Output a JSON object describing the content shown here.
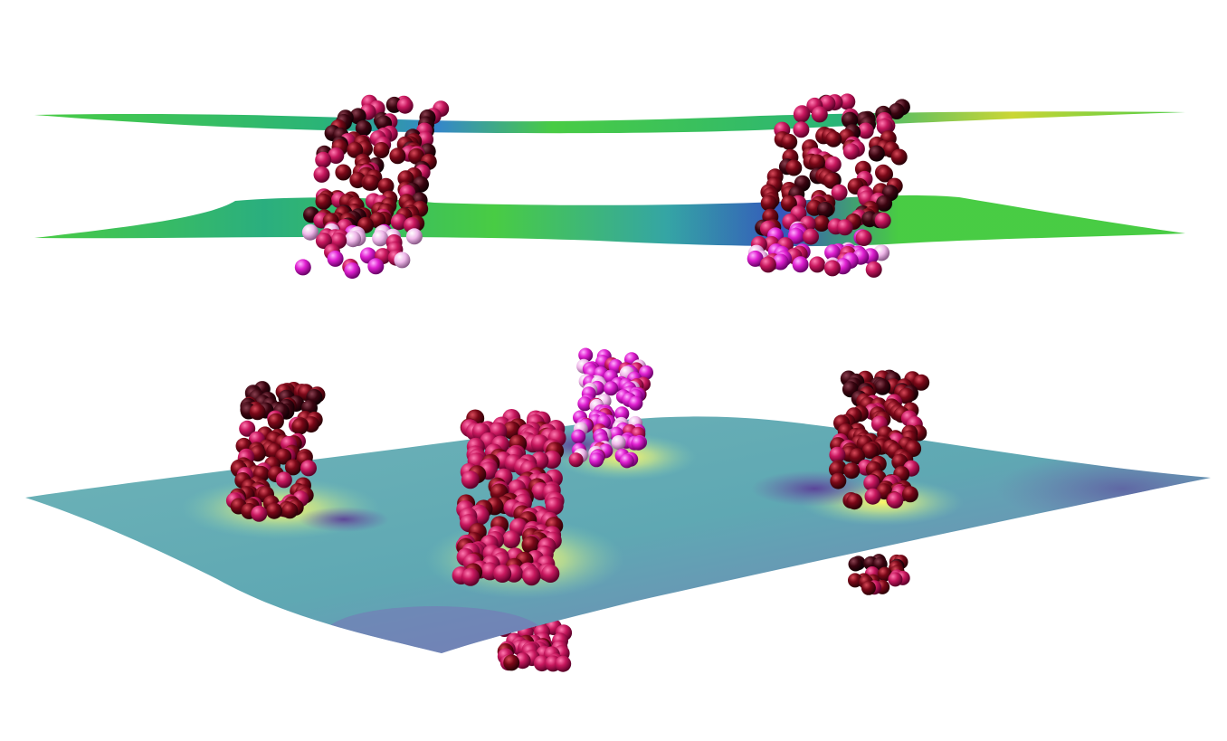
{
  "scene": {
    "background": "#ffffff",
    "top_panel": {
      "view": "side",
      "surfaces": [
        "upper-leaflet",
        "lower-leaflet"
      ],
      "surface_colormap": [
        "#2a4fb8",
        "#1fb070",
        "#3fc93a",
        "#c8d42a"
      ],
      "proteins": 2
    },
    "bottom_panel": {
      "view": "perspective",
      "surface_colormap": [
        "#6f5aa8",
        "#5fa8b3",
        "#7fc9b4",
        "#f5f06a"
      ],
      "proteins": 4
    },
    "bead_palettes": {
      "dark": [
        "#2a0008",
        "#5a0010",
        "#7a0818",
        "#8e0a20",
        "#a01228"
      ],
      "crimson": [
        "#8a0038",
        "#b0104e",
        "#c81860",
        "#d8206a",
        "#e64080"
      ],
      "magenta": [
        "#c010b0",
        "#e020d0",
        "#f060e0",
        "#f0a8e8",
        "#f4d6f0"
      ]
    }
  }
}
